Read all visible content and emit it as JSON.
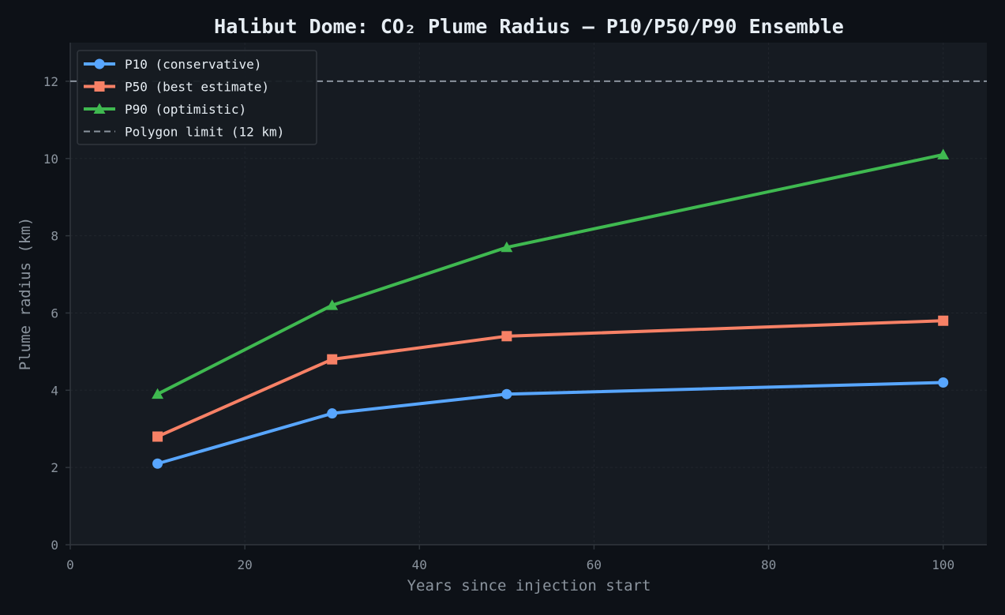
{
  "chart_data": {
    "type": "line",
    "title": "Halibut Dome: CO₂ Plume Radius — P10/P50/P90 Ensemble",
    "xlabel": "Years since injection start",
    "ylabel": "Plume radius (km)",
    "xlim": [
      0,
      105
    ],
    "ylim": [
      0,
      13
    ],
    "x_ticks": [
      0,
      20,
      40,
      60,
      80,
      100
    ],
    "y_ticks": [
      0,
      2,
      4,
      6,
      8,
      10,
      12
    ],
    "grid": true,
    "legend_position": "top-left",
    "x": [
      10,
      30,
      50,
      100
    ],
    "series": [
      {
        "name": "P10 (conservative)",
        "values": [
          2.1,
          3.4,
          3.9,
          4.2
        ],
        "color": "#58a6ff",
        "marker": "circle"
      },
      {
        "name": "P50 (best estimate)",
        "values": [
          2.8,
          4.8,
          5.4,
          5.8
        ],
        "color": "#f78166",
        "marker": "square"
      },
      {
        "name": "P90 (optimistic)",
        "values": [
          3.9,
          6.2,
          7.7,
          10.1
        ],
        "color": "#3fb950",
        "marker": "triangle"
      }
    ],
    "reference_line": {
      "name": "Polygon limit (12 km)",
      "y": 12,
      "color": "#8b949e",
      "style": "dashed"
    },
    "colors": {
      "figure_background": "#0d1117",
      "plot_background": "#161b22",
      "grid": "#21262d",
      "axis": "#30363d",
      "text": "#e6edf3",
      "muted_text": "#8b949e"
    }
  }
}
